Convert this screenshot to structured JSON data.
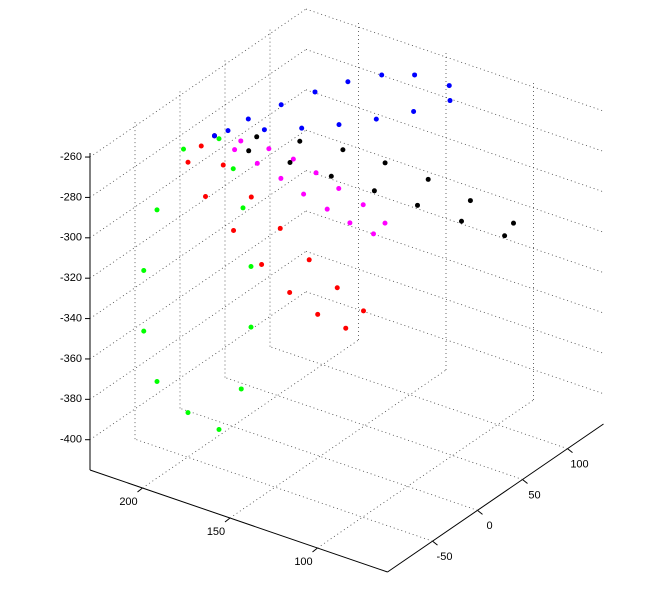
{
  "chart_data": {
    "type": "scatter3d",
    "xlim": [
      60,
      230
    ],
    "ylim": [
      -100,
      140
    ],
    "zlim": [
      -415,
      -258
    ],
    "xticks": [
      100,
      150,
      200
    ],
    "yticks": [
      -50,
      0,
      50,
      100
    ],
    "zticks": [
      -400,
      -380,
      -360,
      -340,
      -320,
      -300,
      -280,
      -260
    ],
    "grid": true,
    "series": [
      {
        "color": "#00ff00",
        "x": [
          210,
          220,
          225,
          225,
          220,
          210,
          200,
          195,
          192,
          192,
          194,
          197,
          200
        ],
        "y": [
          -35,
          -45,
          -50,
          -50,
          -45,
          -30,
          -15,
          0,
          5,
          5,
          0,
          -5,
          -15
        ],
        "z": [
          -270,
          -300,
          -330,
          -360,
          -385,
          -402,
          -412,
          -395,
          -365,
          -335,
          -305,
          -285,
          -268
        ]
      },
      {
        "color": "#ff0000",
        "x": [
          205,
          195,
          180,
          165,
          150,
          135,
          120,
          125,
          140,
          155,
          170,
          185,
          200,
          210
        ],
        "y": [
          -25,
          -20,
          -18,
          -15,
          -12,
          -10,
          -10,
          -20,
          -22,
          -24,
          -26,
          -28,
          -30,
          -30
        ],
        "z": [
          -270,
          -278,
          -290,
          -302,
          -314,
          -324,
          -331,
          -338,
          -335,
          -328,
          -318,
          -305,
          -292,
          -278
        ]
      },
      {
        "color": "#ff00ff",
        "x": [
          200,
          186,
          171,
          157,
          143,
          129,
          114,
          100,
          104,
          118,
          132,
          146,
          160,
          174,
          188
        ],
        "y": [
          -20,
          -18,
          -16,
          -16,
          -18,
          -20,
          -22,
          -25,
          -30,
          -29,
          -27,
          -26,
          -24,
          -23,
          -21
        ],
        "z": [
          -265,
          -264,
          -264,
          -265,
          -267,
          -270,
          -273,
          -277,
          -282,
          -281,
          -279,
          -276,
          -273,
          -270,
          -268
        ]
      },
      {
        "color": "#000000",
        "x": [
          200,
          180,
          160,
          140,
          120,
          100,
          80,
          60,
          62,
          82,
          102,
          122,
          142,
          162,
          182
        ],
        "y": [
          -20,
          -12,
          -3,
          6,
          14,
          23,
          31,
          40,
          34,
          25,
          15,
          6,
          -3,
          -10,
          -17
        ],
        "z": [
          -265,
          -262,
          -261,
          -262,
          -265,
          -270,
          -277,
          -285,
          -290,
          -286,
          -281,
          -277,
          -273,
          -270,
          -268
        ]
      },
      {
        "color": "#0000ff",
        "x": [
          200,
          192,
          184,
          176,
          168,
          160,
          152,
          143,
          140,
          150,
          160,
          170,
          180,
          190,
          200
        ],
        "y": [
          -20,
          2,
          23,
          45,
          66,
          88,
          109,
          130,
          125,
          104,
          82,
          60,
          38,
          16,
          -5
        ],
        "z": [
          -265,
          -261,
          -258,
          -256,
          -255,
          -256,
          -260,
          -269,
          -274,
          -276,
          -276,
          -275,
          -273,
          -270,
          -267
        ]
      }
    ]
  }
}
